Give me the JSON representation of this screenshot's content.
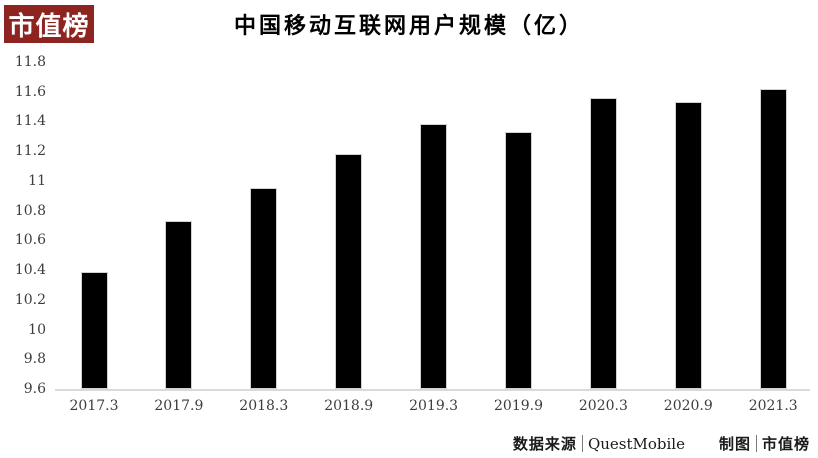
{
  "logo": {
    "text": "市值榜",
    "bg_color": "#8e2420",
    "text_color": "#ffffff"
  },
  "title": "中国移动互联网用户规模（亿）",
  "footer": {
    "source_label": "数据来源",
    "source_value": "QuestMobile",
    "credit_label": "制图",
    "credit_value": "市值榜"
  },
  "chart_data": {
    "type": "bar",
    "title": "中国移动互联网用户规模（亿）",
    "categories": [
      "2017.3",
      "2017.9",
      "2018.3",
      "2018.9",
      "2019.3",
      "2019.9",
      "2020.3",
      "2020.9",
      "2021.3"
    ],
    "values": [
      10.39,
      10.73,
      10.95,
      11.18,
      11.38,
      11.33,
      11.56,
      11.53,
      11.62
    ],
    "xlabel": "",
    "ylabel": "",
    "ylim": [
      9.6,
      11.8
    ],
    "ytick_step": 0.2,
    "ytick_labels": [
      "9.6",
      "9.8",
      "10",
      "10.2",
      "10.4",
      "10.6",
      "10.8",
      "11",
      "11.2",
      "11.4",
      "11.6",
      "11.8"
    ],
    "bar_color": "#000000",
    "axis_line_color": "#d9d9d9",
    "grid": false,
    "legend": "none"
  }
}
